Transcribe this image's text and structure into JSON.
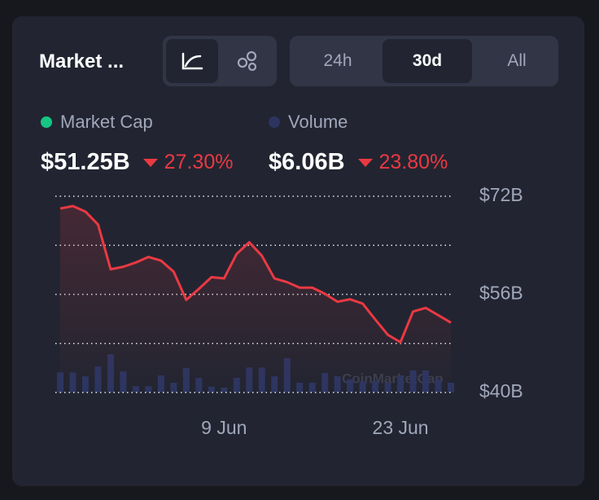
{
  "header": {
    "title": "Market ..."
  },
  "time_ranges": {
    "options": [
      "24h",
      "30d",
      "All"
    ],
    "selected": 1
  },
  "stats": [
    {
      "value": "$51.25B",
      "change": "27.30%"
    },
    {
      "value": "$6.06B",
      "change": "23.80%"
    }
  ],
  "chart_data": {
    "type": "line",
    "categories": [
      null,
      null,
      null,
      null,
      null,
      null,
      null,
      null,
      null,
      null,
      null,
      null,
      null,
      "9 Jun",
      null,
      null,
      null,
      null,
      null,
      null,
      null,
      null,
      null,
      null,
      null,
      null,
      null,
      "23 Jun",
      null,
      null,
      null,
      null
    ],
    "series": [
      {
        "name": "Market Cap",
        "color": "#ea3943",
        "legend_color": "#16c784",
        "values": [
          70.0,
          70.4,
          69.5,
          67.4,
          60.1,
          60.5,
          61.2,
          62.1,
          61.5,
          59.7,
          55.1,
          56.9,
          58.8,
          58.6,
          62.6,
          64.5,
          62.3,
          58.6,
          58.0,
          57.1,
          57.1,
          56.1,
          54.8,
          55.2,
          54.5,
          51.9,
          49.4,
          48.2,
          53.2,
          53.8,
          52.6,
          51.4
        ]
      },
      {
        "name": "Volume",
        "color": "#2c3560",
        "type": "bar",
        "axis": "y2",
        "values": [
          4.1,
          4.1,
          3.3,
          5.3,
          7.8,
          4.3,
          1.3,
          1.3,
          3.5,
          2.0,
          5.0,
          3.0,
          1.2,
          1.0,
          3.0,
          5.1,
          5.1,
          3.3,
          7.0,
          2.0,
          2.0,
          4.0,
          3.3,
          2.7,
          2.3,
          2.3,
          2.0,
          3.5,
          4.5,
          4.5,
          2.7,
          2.0
        ]
      }
    ],
    "ylim": [
      40,
      72
    ],
    "yticks": [
      {
        "value": 72,
        "label": "$72B"
      },
      {
        "value": 56,
        "label": "$56B"
      },
      {
        "value": 40,
        "label": "$40B"
      }
    ],
    "ygrid": [
      40,
      48,
      56,
      64,
      72
    ],
    "y2lim": [
      0,
      40
    ],
    "watermark": "CoinMarketCap"
  }
}
